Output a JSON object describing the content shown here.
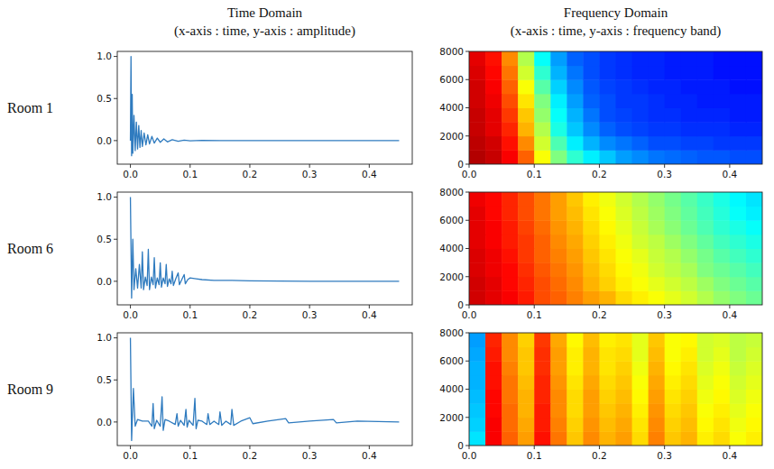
{
  "column_heads": [
    {
      "title": "Time Domain",
      "subtitle": "(x-axis : time, y-axis : amplitude)"
    },
    {
      "title": "Frequency Domain",
      "subtitle": "(x-axis : time, y-axis : frequency band)"
    }
  ],
  "row_labels": [
    "Room 1",
    "Room 6",
    "Room 9"
  ],
  "chart_data": [
    {
      "type": "line",
      "color": "#2f7bbf",
      "x": [
        0,
        0.001,
        0.002,
        0.003,
        0.004,
        0.006,
        0.008,
        0.01,
        0.012,
        0.014,
        0.016,
        0.018,
        0.02,
        0.023,
        0.026,
        0.029,
        0.032,
        0.036,
        0.04,
        0.045,
        0.05,
        0.056,
        0.062,
        0.07,
        0.08,
        0.09,
        0.1,
        0.12,
        0.15,
        0.2,
        0.3,
        0.45
      ],
      "values": [
        0,
        1.0,
        -0.18,
        0.55,
        -0.15,
        0.3,
        -0.12,
        0.22,
        -0.1,
        0.18,
        -0.08,
        0.12,
        -0.07,
        0.09,
        -0.05,
        0.07,
        -0.04,
        0.05,
        -0.03,
        0.03,
        -0.02,
        0.02,
        -0.015,
        0.01,
        -0.008,
        0.005,
        -0.003,
        0.002,
        0.001,
        0,
        0,
        0
      ],
      "xlim": [
        -0.022,
        0.472
      ],
      "ylim": [
        -0.28,
        1.06
      ],
      "xticks": [
        {
          "value": 0,
          "label": "0.0"
        },
        {
          "value": 0.1,
          "label": "0.1"
        },
        {
          "value": 0.2,
          "label": "0.2"
        },
        {
          "value": 0.3,
          "label": "0.3"
        },
        {
          "value": 0.4,
          "label": "0.4"
        }
      ],
      "yticks": [
        {
          "value": 0,
          "label": "0.0"
        },
        {
          "value": 0.5,
          "label": "0.5"
        },
        {
          "value": 1,
          "label": "1.0"
        }
      ]
    },
    {
      "type": "heatmap",
      "x_edges": [
        0,
        0.025,
        0.05,
        0.075,
        0.1,
        0.125,
        0.15,
        0.175,
        0.2,
        0.225,
        0.25,
        0.275,
        0.3,
        0.325,
        0.35,
        0.375,
        0.4,
        0.425,
        0.45
      ],
      "y_edges": [
        0,
        1000,
        2000,
        3000,
        4000,
        5000,
        6000,
        7000,
        8000
      ],
      "cells": [
        [
          0.95,
          0.93,
          0.88,
          0.78,
          0.62,
          0.5,
          0.42,
          0.36,
          0.32,
          0.28,
          0.26,
          0.24,
          0.23,
          0.22,
          0.21,
          0.21,
          0.2,
          0.2
        ],
        [
          0.94,
          0.92,
          0.86,
          0.74,
          0.58,
          0.45,
          0.36,
          0.3,
          0.26,
          0.24,
          0.22,
          0.2,
          0.2,
          0.19,
          0.19,
          0.18,
          0.18,
          0.18
        ],
        [
          0.93,
          0.9,
          0.84,
          0.7,
          0.55,
          0.4,
          0.32,
          0.26,
          0.22,
          0.2,
          0.19,
          0.18,
          0.18,
          0.17,
          0.17,
          0.17,
          0.16,
          0.16
        ],
        [
          0.93,
          0.9,
          0.82,
          0.68,
          0.52,
          0.38,
          0.3,
          0.24,
          0.2,
          0.19,
          0.18,
          0.17,
          0.17,
          0.16,
          0.16,
          0.16,
          0.15,
          0.15
        ],
        [
          0.92,
          0.89,
          0.8,
          0.65,
          0.5,
          0.36,
          0.28,
          0.22,
          0.2,
          0.18,
          0.18,
          0.17,
          0.16,
          0.16,
          0.15,
          0.15,
          0.15,
          0.15
        ],
        [
          0.92,
          0.88,
          0.78,
          0.62,
          0.46,
          0.33,
          0.26,
          0.21,
          0.19,
          0.18,
          0.17,
          0.16,
          0.16,
          0.15,
          0.15,
          0.15,
          0.14,
          0.14
        ],
        [
          0.91,
          0.87,
          0.76,
          0.58,
          0.42,
          0.3,
          0.24,
          0.2,
          0.18,
          0.17,
          0.16,
          0.16,
          0.15,
          0.15,
          0.15,
          0.14,
          0.14,
          0.14
        ],
        [
          0.9,
          0.86,
          0.74,
          0.55,
          0.38,
          0.28,
          0.22,
          0.2,
          0.18,
          0.17,
          0.16,
          0.16,
          0.15,
          0.15,
          0.15,
          0.14,
          0.14,
          0.14
        ]
      ],
      "color_range": [
        0,
        1
      ],
      "xlim": [
        0,
        0.45
      ],
      "ylim": [
        0,
        8000
      ],
      "xticks": [
        {
          "value": 0,
          "label": "0.0"
        },
        {
          "value": 0.1,
          "label": "0.1"
        },
        {
          "value": 0.2,
          "label": "0.2"
        },
        {
          "value": 0.3,
          "label": "0.3"
        },
        {
          "value": 0.4,
          "label": "0.4"
        }
      ],
      "yticks": [
        0,
        2000,
        4000,
        6000,
        8000
      ]
    },
    {
      "type": "line",
      "color": "#2f7bbf",
      "x": [
        0,
        0.002,
        0.004,
        0.006,
        0.009,
        0.012,
        0.015,
        0.018,
        0.02,
        0.022,
        0.025,
        0.028,
        0.03,
        0.032,
        0.035,
        0.038,
        0.04,
        0.042,
        0.045,
        0.048,
        0.05,
        0.052,
        0.055,
        0.058,
        0.06,
        0.062,
        0.065,
        0.068,
        0.07,
        0.072,
        0.076,
        0.08,
        0.082,
        0.086,
        0.09,
        0.092,
        0.096,
        0.1,
        0.11,
        0.12,
        0.14,
        0.17,
        0.2,
        0.3,
        0.45
      ],
      "values": [
        1.0,
        -0.2,
        0.5,
        -0.1,
        0.15,
        -0.08,
        0.2,
        -0.08,
        0.35,
        -0.1,
        0.05,
        -0.05,
        0.38,
        -0.1,
        0.05,
        -0.04,
        0.28,
        -0.08,
        0.04,
        -0.04,
        0.22,
        -0.07,
        0.04,
        -0.03,
        0.2,
        -0.06,
        0.03,
        -0.03,
        0.12,
        -0.05,
        0.03,
        0.1,
        -0.04,
        0.02,
        0.08,
        -0.03,
        0.02,
        0.04,
        0.03,
        0.02,
        0.01,
        0.01,
        0.005,
        0,
        0
      ],
      "xlim": [
        -0.022,
        0.472
      ],
      "ylim": [
        -0.28,
        1.06
      ],
      "xticks": [
        {
          "value": 0,
          "label": "0.0"
        },
        {
          "value": 0.1,
          "label": "0.1"
        },
        {
          "value": 0.2,
          "label": "0.2"
        },
        {
          "value": 0.3,
          "label": "0.3"
        },
        {
          "value": 0.4,
          "label": "0.4"
        }
      ],
      "yticks": [
        {
          "value": 0,
          "label": "0.0"
        },
        {
          "value": 0.5,
          "label": "0.5"
        },
        {
          "value": 1,
          "label": "1.0"
        }
      ]
    },
    {
      "type": "heatmap",
      "x_edges": [
        0,
        0.025,
        0.05,
        0.075,
        0.1,
        0.125,
        0.15,
        0.175,
        0.2,
        0.225,
        0.25,
        0.275,
        0.3,
        0.325,
        0.35,
        0.375,
        0.4,
        0.425,
        0.45
      ],
      "y_edges": [
        0,
        1000,
        2000,
        3000,
        4000,
        5000,
        6000,
        7000,
        8000
      ],
      "cells": [
        [
          0.92,
          0.9,
          0.88,
          0.85,
          0.8,
          0.78,
          0.75,
          0.72,
          0.7,
          0.66,
          0.64,
          0.62,
          0.6,
          0.58,
          0.55,
          0.52,
          0.5,
          0.48
        ],
        [
          0.92,
          0.9,
          0.87,
          0.84,
          0.8,
          0.77,
          0.74,
          0.7,
          0.67,
          0.64,
          0.62,
          0.6,
          0.58,
          0.56,
          0.53,
          0.5,
          0.48,
          0.46
        ],
        [
          0.91,
          0.89,
          0.87,
          0.83,
          0.79,
          0.76,
          0.73,
          0.69,
          0.66,
          0.63,
          0.61,
          0.58,
          0.56,
          0.54,
          0.5,
          0.48,
          0.46,
          0.44
        ],
        [
          0.91,
          0.89,
          0.86,
          0.82,
          0.78,
          0.75,
          0.72,
          0.68,
          0.65,
          0.62,
          0.6,
          0.57,
          0.55,
          0.52,
          0.49,
          0.46,
          0.44,
          0.42
        ],
        [
          0.9,
          0.88,
          0.85,
          0.82,
          0.78,
          0.74,
          0.71,
          0.67,
          0.64,
          0.61,
          0.58,
          0.56,
          0.53,
          0.5,
          0.47,
          0.44,
          0.42,
          0.4
        ],
        [
          0.9,
          0.88,
          0.85,
          0.81,
          0.77,
          0.73,
          0.7,
          0.66,
          0.63,
          0.6,
          0.57,
          0.54,
          0.51,
          0.48,
          0.45,
          0.42,
          0.4,
          0.38
        ],
        [
          0.9,
          0.87,
          0.84,
          0.8,
          0.76,
          0.72,
          0.69,
          0.65,
          0.62,
          0.59,
          0.56,
          0.53,
          0.5,
          0.47,
          0.44,
          0.41,
          0.38,
          0.36
        ],
        [
          0.89,
          0.87,
          0.84,
          0.8,
          0.76,
          0.72,
          0.68,
          0.64,
          0.61,
          0.58,
          0.55,
          0.52,
          0.49,
          0.46,
          0.43,
          0.4,
          0.37,
          0.35
        ]
      ],
      "color_range": [
        0,
        1
      ],
      "xlim": [
        0,
        0.45
      ],
      "ylim": [
        0,
        8000
      ],
      "xticks": [
        {
          "value": 0,
          "label": "0.0"
        },
        {
          "value": 0.1,
          "label": "0.1"
        },
        {
          "value": 0.2,
          "label": "0.2"
        },
        {
          "value": 0.3,
          "label": "0.3"
        },
        {
          "value": 0.4,
          "label": "0.4"
        }
      ],
      "yticks": [
        0,
        2000,
        4000,
        6000,
        8000
      ]
    },
    {
      "type": "line",
      "color": "#2f7bbf",
      "x": [
        0,
        0.002,
        0.005,
        0.008,
        0.012,
        0.02,
        0.03,
        0.036,
        0.038,
        0.04,
        0.044,
        0.05,
        0.053,
        0.055,
        0.058,
        0.065,
        0.075,
        0.078,
        0.08,
        0.084,
        0.09,
        0.093,
        0.095,
        0.098,
        0.105,
        0.108,
        0.11,
        0.113,
        0.12,
        0.128,
        0.13,
        0.133,
        0.14,
        0.148,
        0.15,
        0.153,
        0.16,
        0.168,
        0.17,
        0.173,
        0.185,
        0.2,
        0.205,
        0.23,
        0.26,
        0.265,
        0.3,
        0.34,
        0.345,
        0.38,
        0.45
      ],
      "values": [
        1.0,
        -0.22,
        0.4,
        -0.05,
        0.03,
        0.01,
        0.01,
        -0.05,
        0.22,
        -0.08,
        0.02,
        -0.05,
        0.3,
        -0.1,
        0.03,
        0.01,
        -0.03,
        0.1,
        -0.05,
        0.02,
        -0.04,
        0.15,
        -0.06,
        0.02,
        -0.04,
        0.28,
        -0.08,
        0.02,
        0.01,
        -0.03,
        0.1,
        -0.03,
        0.01,
        -0.03,
        0.12,
        -0.04,
        0.01,
        -0.03,
        0.15,
        -0.04,
        0.01,
        0.05,
        -0.02,
        0.01,
        0.04,
        -0.01,
        0.01,
        0.03,
        -0.01,
        0.01,
        0
      ],
      "xlim": [
        -0.022,
        0.472
      ],
      "ylim": [
        -0.28,
        1.06
      ],
      "xticks": [
        {
          "value": 0,
          "label": "0.0"
        },
        {
          "value": 0.1,
          "label": "0.1"
        },
        {
          "value": 0.2,
          "label": "0.2"
        },
        {
          "value": 0.3,
          "label": "0.3"
        },
        {
          "value": 0.4,
          "label": "0.4"
        }
      ],
      "yticks": [
        {
          "value": 0,
          "label": "0.0"
        },
        {
          "value": 0.5,
          "label": "0.5"
        },
        {
          "value": 1,
          "label": "1.0"
        }
      ]
    },
    {
      "type": "heatmap",
      "x_edges": [
        0,
        0.025,
        0.05,
        0.075,
        0.1,
        0.125,
        0.15,
        0.175,
        0.2,
        0.225,
        0.25,
        0.275,
        0.3,
        0.325,
        0.35,
        0.375,
        0.4,
        0.425,
        0.45
      ],
      "y_edges": [
        0,
        1000,
        2000,
        3000,
        4000,
        5000,
        6000,
        7000,
        8000
      ],
      "cells": [
        [
          0.35,
          0.88,
          0.78,
          0.72,
          0.86,
          0.76,
          0.68,
          0.74,
          0.7,
          0.72,
          0.66,
          0.75,
          0.68,
          0.7,
          0.64,
          0.66,
          0.62,
          0.64
        ],
        [
          0.33,
          0.88,
          0.77,
          0.71,
          0.85,
          0.75,
          0.67,
          0.73,
          0.69,
          0.71,
          0.65,
          0.74,
          0.67,
          0.69,
          0.63,
          0.65,
          0.61,
          0.63
        ],
        [
          0.32,
          0.87,
          0.77,
          0.7,
          0.85,
          0.74,
          0.66,
          0.72,
          0.68,
          0.7,
          0.64,
          0.73,
          0.66,
          0.68,
          0.62,
          0.64,
          0.6,
          0.62
        ],
        [
          0.31,
          0.87,
          0.76,
          0.7,
          0.84,
          0.74,
          0.66,
          0.72,
          0.67,
          0.69,
          0.63,
          0.72,
          0.65,
          0.67,
          0.61,
          0.63,
          0.59,
          0.61
        ],
        [
          0.3,
          0.86,
          0.76,
          0.69,
          0.84,
          0.73,
          0.65,
          0.71,
          0.66,
          0.68,
          0.62,
          0.71,
          0.64,
          0.66,
          0.6,
          0.62,
          0.58,
          0.6
        ],
        [
          0.3,
          0.86,
          0.75,
          0.68,
          0.83,
          0.72,
          0.64,
          0.7,
          0.65,
          0.67,
          0.61,
          0.7,
          0.63,
          0.65,
          0.59,
          0.61,
          0.57,
          0.59
        ],
        [
          0.29,
          0.85,
          0.74,
          0.68,
          0.83,
          0.72,
          0.64,
          0.7,
          0.65,
          0.66,
          0.6,
          0.69,
          0.62,
          0.64,
          0.58,
          0.6,
          0.56,
          0.58
        ],
        [
          0.28,
          0.84,
          0.74,
          0.67,
          0.82,
          0.71,
          0.63,
          0.69,
          0.64,
          0.65,
          0.6,
          0.68,
          0.62,
          0.63,
          0.58,
          0.59,
          0.56,
          0.57
        ]
      ],
      "color_range": [
        0,
        1
      ],
      "xlim": [
        0,
        0.45
      ],
      "ylim": [
        0,
        8000
      ],
      "xticks": [
        {
          "value": 0,
          "label": "0.0"
        },
        {
          "value": 0.1,
          "label": "0.1"
        },
        {
          "value": 0.2,
          "label": "0.2"
        },
        {
          "value": 0.3,
          "label": "0.3"
        },
        {
          "value": 0.4,
          "label": "0.4"
        }
      ],
      "yticks": [
        0,
        2000,
        4000,
        6000,
        8000
      ]
    }
  ]
}
